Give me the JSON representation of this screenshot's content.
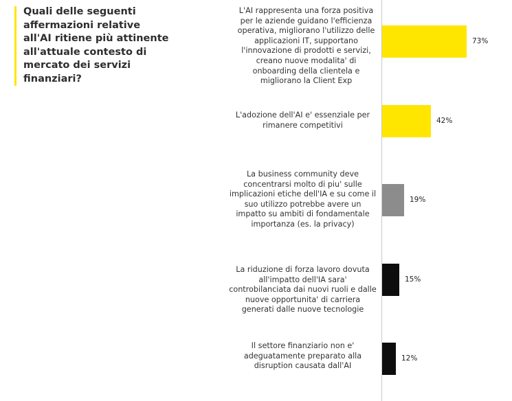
{
  "question": "Quali delle seguenti affermazioni relative all'AI ritiene più attinente all'attuale contesto di mercato dei servizi finanziari?",
  "colors": {
    "accent": "#ffe600",
    "yellow": "#ffe600",
    "gray": "#8c8c8c",
    "black": "#0d0d0d"
  },
  "chart_data": {
    "type": "bar",
    "orientation": "horizontal",
    "title": "",
    "categories": [
      "L'AI rappresenta una forza positiva per le aziende guidano l'efficienza operativa, migliorano l'utilizzo delle applicazioni IT, supportano l'innovazione di prodotti e servizi, creano nuove modalita' di onboarding della clientela e migliorano la Client Exp",
      "L'adozione dell'AI e' essenziale per rimanere competitivi",
      "La business community deve concentrarsi molto di piu' sulle implicazioni etiche dell'IA e su come il suo utilizzo potrebbe avere un impatto su ambiti di fondamentale importanza (es. la privacy)",
      "La riduzione di forza lavoro dovuta all'impatto dell'IA sara' controbilanciata dai nuovi ruoli e dalle nuove opportunita' di carriera generati dalle nuove tecnologie",
      "Il settore finanziario non e' adeguatamente preparato alla disruption causata dall'AI"
    ],
    "values": [
      73,
      42,
      19,
      15,
      12
    ],
    "value_labels": [
      "73%",
      "42%",
      "19%",
      "15%",
      "12%"
    ],
    "bar_colors": [
      "#ffe600",
      "#ffe600",
      "#8c8c8c",
      "#0d0d0d",
      "#0d0d0d"
    ],
    "xlim": [
      0,
      100
    ],
    "grid": false,
    "legend": "none"
  }
}
